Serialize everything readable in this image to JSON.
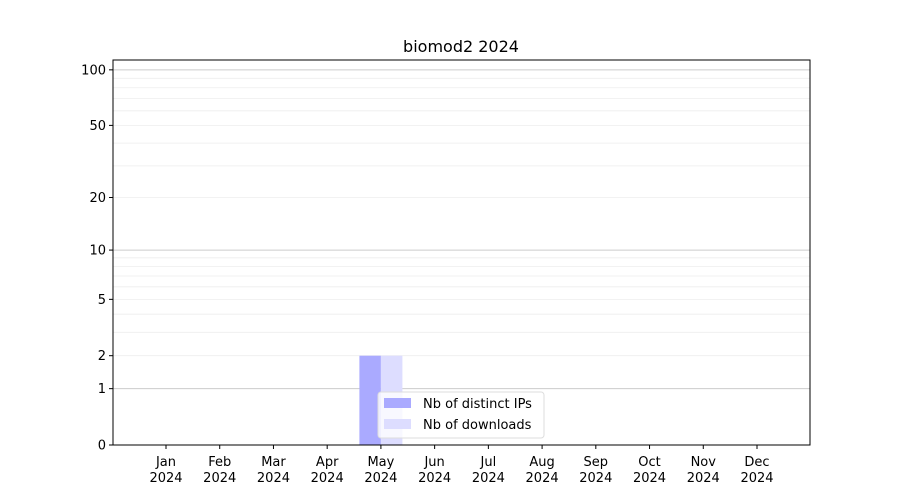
{
  "chart_data": {
    "type": "bar",
    "title": "biomod2 2024",
    "xlabel": "",
    "ylabel": "",
    "y_scale": "symlog (log of 1+y)",
    "ylim": [
      0,
      113
    ],
    "yticks": [
      0,
      1,
      2,
      5,
      10,
      20,
      50,
      100
    ],
    "grid": true,
    "legend_placement": "bottom-center",
    "categories": [
      "Jan\n2024",
      "Feb\n2024",
      "Mar\n2024",
      "Apr\n2024",
      "May\n2024",
      "Jun\n2024",
      "Jul\n2024",
      "Aug\n2024",
      "Sep\n2024",
      "Oct\n2024",
      "Nov\n2024",
      "Dec\n2024"
    ],
    "series": [
      {
        "name": "Nb of distinct IPs",
        "color": "#aaaaff",
        "values": [
          0,
          0,
          0,
          0,
          2,
          0,
          0,
          0,
          0,
          0,
          0,
          0
        ]
      },
      {
        "name": "Nb of downloads",
        "color": "#ddddff",
        "values": [
          0,
          0,
          0,
          0,
          2,
          0,
          0,
          0,
          0,
          0,
          0,
          0
        ]
      }
    ]
  }
}
